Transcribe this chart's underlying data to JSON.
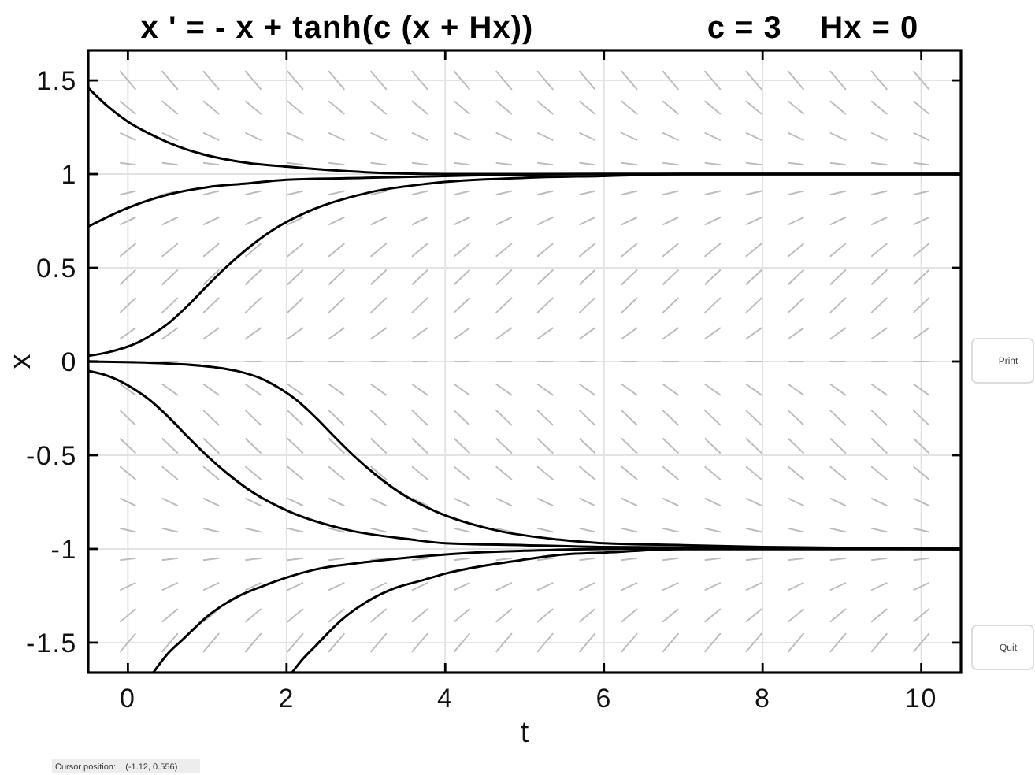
{
  "chart_data": {
    "type": "line",
    "title": "x ' = - x + tanh(c (x + Hx))",
    "subtitle": "c = 3    Hx = 0",
    "xlabel": "t",
    "ylabel": "x",
    "annotations": [
      "Cursor position:    (-1.12, 0.556)",
      "Print",
      "Quit"
    ],
    "xlim": [
      -0.5,
      10.5
    ],
    "ylim": [
      -1.66,
      1.66
    ],
    "xticks": [
      0,
      2,
      4,
      6,
      8,
      10
    ],
    "yticks": [
      -1.5,
      -1,
      -0.5,
      0,
      0.5,
      1,
      1.5
    ],
    "grid": true,
    "x": [
      -0.1,
      0.1,
      null,
      0.43,
      0.63,
      null,
      0.95,
      1.15,
      null,
      1.48,
      1.68,
      null,
      2.01,
      2.21,
      null,
      2.53,
      2.73,
      null,
      3.06,
      3.26,
      null,
      3.58,
      3.78,
      null,
      4.11,
      4.31,
      null,
      4.64,
      4.84,
      null,
      5.16,
      5.36,
      null,
      5.69,
      5.89,
      null,
      6.22,
      6.42,
      null,
      6.74,
      6.94,
      null,
      7.27,
      7.47,
      null,
      7.79,
      7.99,
      null,
      8.32,
      8.52,
      null,
      8.85,
      9.05,
      null,
      9.37,
      9.57,
      null,
      9.9,
      10.1,
      null
    ],
    "series": [
      {
        "color": "#bdbdbd",
        "values": [
          1.55,
          1.45,
          null,
          1.55,
          1.45,
          null,
          1.55,
          1.45,
          null,
          1.55,
          1.45,
          null,
          1.55,
          1.45,
          null,
          1.55,
          1.45,
          null,
          1.55,
          1.45,
          null,
          1.55,
          1.45,
          null,
          1.55,
          1.45,
          null,
          1.55,
          1.45,
          null,
          1.55,
          1.45,
          null,
          1.55,
          1.45,
          null,
          1.55,
          1.45,
          null,
          1.55,
          1.45,
          null,
          1.55,
          1.45,
          null,
          1.55,
          1.45,
          null,
          1.55,
          1.45,
          null,
          1.55,
          1.45,
          null,
          1.55,
          1.45,
          null,
          1.55,
          1.45,
          null
        ]
      },
      {
        "color": "#bdbdbd",
        "values": [
          1.39,
          1.32,
          null,
          1.39,
          1.32,
          null,
          1.39,
          1.32,
          null,
          1.39,
          1.32,
          null,
          1.39,
          1.32,
          null,
          1.39,
          1.32,
          null,
          1.39,
          1.32,
          null,
          1.39,
          1.32,
          null,
          1.39,
          1.32,
          null,
          1.39,
          1.32,
          null,
          1.39,
          1.32,
          null,
          1.39,
          1.32,
          null,
          1.39,
          1.32,
          null,
          1.39,
          1.32,
          null,
          1.39,
          1.32,
          null,
          1.39,
          1.32,
          null,
          1.39,
          1.32,
          null,
          1.39,
          1.32,
          null,
          1.39,
          1.32,
          null,
          1.39,
          1.32,
          null
        ]
      },
      {
        "color": "#bdbdbd",
        "values": [
          1.22,
          1.18,
          null,
          1.22,
          1.18,
          null,
          1.22,
          1.18,
          null,
          1.22,
          1.18,
          null,
          1.22,
          1.18,
          null,
          1.22,
          1.18,
          null,
          1.22,
          1.18,
          null,
          1.22,
          1.18,
          null,
          1.22,
          1.18,
          null,
          1.22,
          1.18,
          null,
          1.22,
          1.18,
          null,
          1.22,
          1.18,
          null,
          1.22,
          1.18,
          null,
          1.22,
          1.18,
          null,
          1.22,
          1.18,
          null,
          1.22,
          1.18,
          null,
          1.22,
          1.18,
          null,
          1.22,
          1.18,
          null,
          1.22,
          1.18,
          null,
          1.22,
          1.18,
          null
        ]
      },
      {
        "color": "#bdbdbd",
        "values": [
          1.06,
          1.05,
          null,
          1.06,
          1.05,
          null,
          1.06,
          1.05,
          null,
          1.06,
          1.05,
          null,
          1.06,
          1.05,
          null,
          1.06,
          1.05,
          null,
          1.06,
          1.05,
          null,
          1.06,
          1.05,
          null,
          1.06,
          1.05,
          null,
          1.06,
          1.05,
          null,
          1.06,
          1.05,
          null,
          1.06,
          1.05,
          null,
          1.06,
          1.05,
          null,
          1.06,
          1.05,
          null,
          1.06,
          1.05,
          null,
          1.06,
          1.05,
          null,
          1.06,
          1.05,
          null,
          1.06,
          1.05,
          null,
          1.06,
          1.05,
          null,
          1.06,
          1.05,
          null
        ]
      },
      {
        "color": "#bdbdbd",
        "values": [
          0.89,
          0.91,
          null,
          0.89,
          0.91,
          null,
          0.89,
          0.91,
          null,
          0.89,
          0.91,
          null,
          0.89,
          0.91,
          null,
          0.89,
          0.91,
          null,
          0.89,
          0.91,
          null,
          0.89,
          0.91,
          null,
          0.89,
          0.91,
          null,
          0.89,
          0.91,
          null,
          0.89,
          0.91,
          null,
          0.89,
          0.91,
          null,
          0.89,
          0.91,
          null,
          0.89,
          0.91,
          null,
          0.89,
          0.91,
          null,
          0.89,
          0.91,
          null,
          0.89,
          0.91,
          null,
          0.89,
          0.91,
          null,
          0.89,
          0.91,
          null,
          0.89,
          0.91,
          null
        ]
      },
      {
        "color": "#bdbdbd",
        "values": [
          0.73,
          0.77,
          null,
          0.73,
          0.77,
          null,
          0.73,
          0.77,
          null,
          0.73,
          0.77,
          null,
          0.73,
          0.77,
          null,
          0.73,
          0.77,
          null,
          0.73,
          0.77,
          null,
          0.73,
          0.77,
          null,
          0.73,
          0.77,
          null,
          0.73,
          0.77,
          null,
          0.73,
          0.77,
          null,
          0.73,
          0.77,
          null,
          0.73,
          0.77,
          null,
          0.73,
          0.77,
          null,
          0.73,
          0.77,
          null,
          0.73,
          0.77,
          null,
          0.73,
          0.77,
          null,
          0.73,
          0.77,
          null,
          0.73,
          0.77,
          null,
          0.73,
          0.77,
          null
        ]
      },
      {
        "color": "#bdbdbd",
        "values": [
          0.56,
          0.63,
          null,
          0.56,
          0.63,
          null,
          0.56,
          0.63,
          null,
          0.56,
          0.63,
          null,
          0.56,
          0.63,
          null,
          0.56,
          0.63,
          null,
          0.56,
          0.63,
          null,
          0.56,
          0.63,
          null,
          0.56,
          0.63,
          null,
          0.56,
          0.63,
          null,
          0.56,
          0.63,
          null,
          0.56,
          0.63,
          null,
          0.56,
          0.63,
          null,
          0.56,
          0.63,
          null,
          0.56,
          0.63,
          null,
          0.56,
          0.63,
          null,
          0.56,
          0.63,
          null,
          0.56,
          0.63,
          null,
          0.56,
          0.63,
          null,
          0.56,
          0.63,
          null
        ]
      },
      {
        "color": "#bdbdbd",
        "values": [
          0.41,
          0.49,
          null,
          0.41,
          0.49,
          null,
          0.41,
          0.49,
          null,
          0.41,
          0.49,
          null,
          0.41,
          0.49,
          null,
          0.41,
          0.49,
          null,
          0.41,
          0.49,
          null,
          0.41,
          0.49,
          null,
          0.41,
          0.49,
          null,
          0.41,
          0.49,
          null,
          0.41,
          0.49,
          null,
          0.41,
          0.49,
          null,
          0.41,
          0.49,
          null,
          0.41,
          0.49,
          null,
          0.41,
          0.49,
          null,
          0.41,
          0.49,
          null,
          0.41,
          0.49,
          null,
          0.41,
          0.49,
          null,
          0.41,
          0.49,
          null,
          0.41,
          0.49,
          null
        ]
      },
      {
        "color": "#bdbdbd",
        "values": [
          0.26,
          0.34,
          null,
          0.26,
          0.34,
          null,
          0.26,
          0.34,
          null,
          0.26,
          0.34,
          null,
          0.26,
          0.34,
          null,
          0.26,
          0.34,
          null,
          0.26,
          0.34,
          null,
          0.26,
          0.34,
          null,
          0.26,
          0.34,
          null,
          0.26,
          0.34,
          null,
          0.26,
          0.34,
          null,
          0.26,
          0.34,
          null,
          0.26,
          0.34,
          null,
          0.26,
          0.34,
          null,
          0.26,
          0.34,
          null,
          0.26,
          0.34,
          null,
          0.26,
          0.34,
          null,
          0.26,
          0.34,
          null,
          0.26,
          0.34,
          null,
          0.26,
          0.34,
          null
        ]
      },
      {
        "color": "#bdbdbd",
        "values": [
          0.12,
          0.18,
          null,
          0.12,
          0.18,
          null,
          0.12,
          0.18,
          null,
          0.12,
          0.18,
          null,
          0.12,
          0.18,
          null,
          0.12,
          0.18,
          null,
          0.12,
          0.18,
          null,
          0.12,
          0.18,
          null,
          0.12,
          0.18,
          null,
          0.12,
          0.18,
          null,
          0.12,
          0.18,
          null,
          0.12,
          0.18,
          null,
          0.12,
          0.18,
          null,
          0.12,
          0.18,
          null,
          0.12,
          0.18,
          null,
          0.12,
          0.18,
          null,
          0.12,
          0.18,
          null,
          0.12,
          0.18,
          null,
          0.12,
          0.18,
          null,
          0.12,
          0.18,
          null
        ]
      },
      {
        "color": "#bdbdbd",
        "values": [
          0,
          0,
          null,
          0,
          0,
          null,
          0,
          0,
          null,
          0,
          0,
          null,
          0,
          0,
          null,
          0,
          0,
          null,
          0,
          0,
          null,
          0,
          0,
          null,
          0,
          0,
          null,
          0,
          0,
          null,
          0,
          0,
          null,
          0,
          0,
          null,
          0,
          0,
          null,
          0,
          0,
          null,
          0,
          0,
          null,
          0,
          0,
          null,
          0,
          0,
          null,
          0,
          0,
          null,
          0,
          0,
          null,
          0,
          0,
          null
        ]
      },
      {
        "color": "#bdbdbd",
        "values": [
          -0.12,
          -0.18,
          null,
          -0.12,
          -0.18,
          null,
          -0.12,
          -0.18,
          null,
          -0.12,
          -0.18,
          null,
          -0.12,
          -0.18,
          null,
          -0.12,
          -0.18,
          null,
          -0.12,
          -0.18,
          null,
          -0.12,
          -0.18,
          null,
          -0.12,
          -0.18,
          null,
          -0.12,
          -0.18,
          null,
          -0.12,
          -0.18,
          null,
          -0.12,
          -0.18,
          null,
          -0.12,
          -0.18,
          null,
          -0.12,
          -0.18,
          null,
          -0.12,
          -0.18,
          null,
          -0.12,
          -0.18,
          null,
          -0.12,
          -0.18,
          null,
          -0.12,
          -0.18,
          null,
          -0.12,
          -0.18,
          null,
          -0.12,
          -0.18,
          null
        ]
      },
      {
        "color": "#bdbdbd",
        "values": [
          -0.26,
          -0.34,
          null,
          -0.26,
          -0.34,
          null,
          -0.26,
          -0.34,
          null,
          -0.26,
          -0.34,
          null,
          -0.26,
          -0.34,
          null,
          -0.26,
          -0.34,
          null,
          -0.26,
          -0.34,
          null,
          -0.26,
          -0.34,
          null,
          -0.26,
          -0.34,
          null,
          -0.26,
          -0.34,
          null,
          -0.26,
          -0.34,
          null,
          -0.26,
          -0.34,
          null,
          -0.26,
          -0.34,
          null,
          -0.26,
          -0.34,
          null,
          -0.26,
          -0.34,
          null,
          -0.26,
          -0.34,
          null,
          -0.26,
          -0.34,
          null,
          -0.26,
          -0.34,
          null,
          -0.26,
          -0.34,
          null,
          -0.26,
          -0.34,
          null
        ]
      },
      {
        "color": "#bdbdbd",
        "values": [
          -0.41,
          -0.49,
          null,
          -0.41,
          -0.49,
          null,
          -0.41,
          -0.49,
          null,
          -0.41,
          -0.49,
          null,
          -0.41,
          -0.49,
          null,
          -0.41,
          -0.49,
          null,
          -0.41,
          -0.49,
          null,
          -0.41,
          -0.49,
          null,
          -0.41,
          -0.49,
          null,
          -0.41,
          -0.49,
          null,
          -0.41,
          -0.49,
          null,
          -0.41,
          -0.49,
          null,
          -0.41,
          -0.49,
          null,
          -0.41,
          -0.49,
          null,
          -0.41,
          -0.49,
          null,
          -0.41,
          -0.49,
          null,
          -0.41,
          -0.49,
          null,
          -0.41,
          -0.49,
          null,
          -0.41,
          -0.49,
          null,
          -0.41,
          -0.49,
          null
        ]
      },
      {
        "color": "#bdbdbd",
        "values": [
          -0.56,
          -0.63,
          null,
          -0.56,
          -0.63,
          null,
          -0.56,
          -0.63,
          null,
          -0.56,
          -0.63,
          null,
          -0.56,
          -0.63,
          null,
          -0.56,
          -0.63,
          null,
          -0.56,
          -0.63,
          null,
          -0.56,
          -0.63,
          null,
          -0.56,
          -0.63,
          null,
          -0.56,
          -0.63,
          null,
          -0.56,
          -0.63,
          null,
          -0.56,
          -0.63,
          null,
          -0.56,
          -0.63,
          null,
          -0.56,
          -0.63,
          null,
          -0.56,
          -0.63,
          null,
          -0.56,
          -0.63,
          null,
          -0.56,
          -0.63,
          null,
          -0.56,
          -0.63,
          null,
          -0.56,
          -0.63,
          null,
          -0.56,
          -0.63,
          null
        ]
      },
      {
        "color": "#bdbdbd",
        "values": [
          -0.73,
          -0.77,
          null,
          -0.73,
          -0.77,
          null,
          -0.73,
          -0.77,
          null,
          -0.73,
          -0.77,
          null,
          -0.73,
          -0.77,
          null,
          -0.73,
          -0.77,
          null,
          -0.73,
          -0.77,
          null,
          -0.73,
          -0.77,
          null,
          -0.73,
          -0.77,
          null,
          -0.73,
          -0.77,
          null,
          -0.73,
          -0.77,
          null,
          -0.73,
          -0.77,
          null,
          -0.73,
          -0.77,
          null,
          -0.73,
          -0.77,
          null,
          -0.73,
          -0.77,
          null,
          -0.73,
          -0.77,
          null,
          -0.73,
          -0.77,
          null,
          -0.73,
          -0.77,
          null,
          -0.73,
          -0.77,
          null,
          -0.73,
          -0.77,
          null
        ]
      },
      {
        "color": "#bdbdbd",
        "values": [
          -0.89,
          -0.91,
          null,
          -0.89,
          -0.91,
          null,
          -0.89,
          -0.91,
          null,
          -0.89,
          -0.91,
          null,
          -0.89,
          -0.91,
          null,
          -0.89,
          -0.91,
          null,
          -0.89,
          -0.91,
          null,
          -0.89,
          -0.91,
          null,
          -0.89,
          -0.91,
          null,
          -0.89,
          -0.91,
          null,
          -0.89,
          -0.91,
          null,
          -0.89,
          -0.91,
          null,
          -0.89,
          -0.91,
          null,
          -0.89,
          -0.91,
          null,
          -0.89,
          -0.91,
          null,
          -0.89,
          -0.91,
          null,
          -0.89,
          -0.91,
          null,
          -0.89,
          -0.91,
          null,
          -0.89,
          -0.91,
          null,
          -0.89,
          -0.91,
          null
        ]
      },
      {
        "color": "#bdbdbd",
        "values": [
          -1.06,
          -1.05,
          null,
          -1.06,
          -1.05,
          null,
          -1.06,
          -1.05,
          null,
          -1.06,
          -1.05,
          null,
          -1.06,
          -1.05,
          null,
          -1.06,
          -1.05,
          null,
          -1.06,
          -1.05,
          null,
          -1.06,
          -1.05,
          null,
          -1.06,
          -1.05,
          null,
          -1.06,
          -1.05,
          null,
          -1.06,
          -1.05,
          null,
          -1.06,
          -1.05,
          null,
          -1.06,
          -1.05,
          null,
          -1.06,
          -1.05,
          null,
          -1.06,
          -1.05,
          null,
          -1.06,
          -1.05,
          null,
          -1.06,
          -1.05,
          null,
          -1.06,
          -1.05,
          null,
          -1.06,
          -1.05,
          null,
          -1.06,
          -1.05,
          null
        ]
      },
      {
        "color": "#bdbdbd",
        "values": [
          -1.22,
          -1.18,
          null,
          -1.22,
          -1.18,
          null,
          -1.22,
          -1.18,
          null,
          -1.22,
          -1.18,
          null,
          -1.22,
          -1.18,
          null,
          -1.22,
          -1.18,
          null,
          -1.22,
          -1.18,
          null,
          -1.22,
          -1.18,
          null,
          -1.22,
          -1.18,
          null,
          -1.22,
          -1.18,
          null,
          -1.22,
          -1.18,
          null,
          -1.22,
          -1.18,
          null,
          -1.22,
          -1.18,
          null,
          -1.22,
          -1.18,
          null,
          -1.22,
          -1.18,
          null,
          -1.22,
          -1.18,
          null,
          -1.22,
          -1.18,
          null,
          -1.22,
          -1.18,
          null,
          -1.22,
          -1.18,
          null,
          -1.22,
          -1.18,
          null
        ]
      },
      {
        "color": "#bdbdbd",
        "values": [
          -1.39,
          -1.32,
          null,
          -1.39,
          -1.32,
          null,
          -1.39,
          -1.32,
          null,
          -1.39,
          -1.32,
          null,
          -1.39,
          -1.32,
          null,
          -1.39,
          -1.32,
          null,
          -1.39,
          -1.32,
          null,
          -1.39,
          -1.32,
          null,
          -1.39,
          -1.32,
          null,
          -1.39,
          -1.32,
          null,
          -1.39,
          -1.32,
          null,
          -1.39,
          -1.32,
          null,
          -1.39,
          -1.32,
          null,
          -1.39,
          -1.32,
          null,
          -1.39,
          -1.32,
          null,
          -1.39,
          -1.32,
          null,
          -1.39,
          -1.32,
          null,
          -1.39,
          -1.32,
          null,
          -1.39,
          -1.32,
          null,
          -1.39,
          -1.32,
          null
        ]
      },
      {
        "color": "#bdbdbd",
        "values": [
          -1.55,
          -1.45,
          null,
          -1.55,
          -1.45,
          null,
          -1.55,
          -1.45,
          null,
          -1.55,
          -1.45,
          null,
          -1.55,
          -1.45,
          null,
          -1.55,
          -1.45,
          null,
          -1.55,
          -1.45,
          null,
          -1.55,
          -1.45,
          null,
          -1.55,
          -1.45,
          null,
          -1.55,
          -1.45,
          null,
          -1.55,
          -1.45,
          null,
          -1.55,
          -1.45,
          null,
          -1.55,
          -1.45,
          null,
          -1.55,
          -1.45,
          null,
          -1.55,
          -1.45,
          null,
          -1.55,
          -1.45,
          null,
          -1.55,
          -1.45,
          null,
          -1.55,
          -1.45,
          null,
          -1.55,
          -1.45,
          null,
          -1.55,
          -1.45,
          null
        ]
      },
      {
        "color": "#000000",
        "x": [
          -0.5,
          -0.25,
          0,
          0.25,
          0.5,
          0.75,
          1,
          1.5,
          2,
          3,
          4,
          10.5
        ],
        "values": [
          1.46,
          1.36,
          1.28,
          1.22,
          1.17,
          1.13,
          1.1,
          1.06,
          1.04,
          1.01,
          1,
          1
        ]
      },
      {
        "color": "#000000",
        "x": [
          -0.5,
          0,
          0.5,
          1,
          1.5,
          2,
          3,
          4,
          6,
          10.5
        ],
        "values": [
          0.72,
          0.82,
          0.89,
          0.93,
          0.95,
          0.97,
          0.98,
          0.99,
          1,
          1
        ]
      },
      {
        "color": "#000000",
        "x": [
          -0.5,
          -0.24,
          0.12,
          0.33,
          0.5,
          0.76,
          0.99,
          1.23,
          1.5,
          1.82,
          2.27,
          3.02,
          3.8,
          5,
          6,
          7,
          10.5
        ],
        "values": [
          0.03,
          0.05,
          0.1,
          0.15,
          0.2,
          0.3,
          0.4,
          0.5,
          0.6,
          0.7,
          0.8,
          0.9,
          0.95,
          0.98,
          0.99,
          1,
          1
        ]
      },
      {
        "color": "#000000",
        "x": [
          -0.5,
          0.5,
          1.08,
          1.37,
          1.73,
          1.94,
          2.11,
          2.37,
          2.6,
          2.84,
          3.11,
          3.43,
          3.88,
          4.63,
          5.42,
          6,
          7,
          8,
          10.5
        ],
        "values": [
          0,
          -0.01,
          -0.03,
          -0.05,
          -0.1,
          -0.15,
          -0.2,
          -0.3,
          -0.4,
          -0.5,
          -0.6,
          -0.7,
          -0.8,
          -0.9,
          -0.95,
          -0.97,
          -0.98,
          -0.99,
          -1
        ]
      },
      {
        "color": "#000000",
        "x": [
          -0.5,
          -0.3,
          -0.12,
          0.09,
          0.26,
          0.52,
          0.75,
          0.99,
          1.26,
          1.58,
          2.03,
          2.78,
          3.57,
          4,
          5,
          6,
          10.5
        ],
        "values": [
          -0.05,
          -0.07,
          -0.1,
          -0.15,
          -0.2,
          -0.3,
          -0.4,
          -0.5,
          -0.6,
          -0.7,
          -0.8,
          -0.9,
          -0.95,
          -0.97,
          -0.98,
          -0.99,
          -1
        ]
      },
      {
        "color": "#000000",
        "x": [
          0.32,
          0.5,
          0.7,
          1.03,
          1.36,
          1.69,
          2.02,
          2.36,
          3.02,
          3.69,
          4.35,
          5,
          6,
          10.5
        ],
        "values": [
          -1.66,
          -1.56,
          -1.48,
          -1.35,
          -1.26,
          -1.2,
          -1.15,
          -1.11,
          -1.07,
          -1.04,
          -1.02,
          -1.01,
          -1,
          -1
        ]
      },
      {
        "color": "#000000",
        "x": [
          2.07,
          2.2,
          2.36,
          2.69,
          3.02,
          3.36,
          3.69,
          4.02,
          4.35,
          4.95,
          5.5,
          6,
          7,
          10.5
        ],
        "values": [
          -1.66,
          -1.59,
          -1.52,
          -1.38,
          -1.28,
          -1.21,
          -1.17,
          -1.13,
          -1.1,
          -1.06,
          -1.03,
          -1.02,
          -1,
          -1
        ]
      }
    ]
  }
}
